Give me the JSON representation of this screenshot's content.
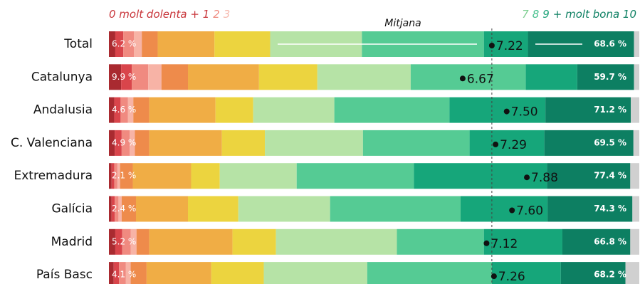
{
  "chart_data": {
    "type": "stacked_bar_horizontal",
    "header_left": [
      {
        "text": "0 molt dolenta + 1",
        "color": "#c9373c"
      },
      {
        "text": "2",
        "color": "#ef8a7f"
      },
      {
        "text": "3",
        "color": "#f6b9ae"
      }
    ],
    "header_right": [
      {
        "text": "7",
        "color": "#7fcf92"
      },
      {
        "text": "8",
        "color": "#45c08d"
      },
      {
        "text": "9",
        "color": "#1fa37a"
      },
      {
        "text": "+ molt bona 10",
        "color": "#0e8063"
      }
    ],
    "mean_title": "Mitjana",
    "categories": [
      "Total",
      "Catalunya",
      "Andalusia",
      "C. Valenciana",
      "Extremadura",
      "Galícia",
      "Madrid",
      "País Basc"
    ],
    "xlim": [
      0,
      100
    ],
    "mean_lim": [
      0,
      10
    ],
    "series": [
      {
        "color": "#a92a30",
        "values": [
          1.2,
          2.3,
          1.0,
          1.1,
          0.5,
          0.5,
          1.2,
          0.9
        ]
      },
      {
        "color": "#d9454b",
        "values": [
          1.5,
          2.0,
          1.2,
          1.3,
          0.5,
          0.6,
          1.3,
          1.0
        ]
      },
      {
        "color": "#f08a80",
        "values": [
          2.0,
          3.1,
          1.4,
          1.5,
          0.6,
          0.7,
          1.6,
          1.3
        ]
      },
      {
        "color": "#f7b3a6",
        "values": [
          1.5,
          2.5,
          1.0,
          1.0,
          0.5,
          0.6,
          1.1,
          0.9
        ]
      },
      {
        "color": "#ee8b4b",
        "values": [
          3.0,
          5.0,
          3.0,
          2.7,
          2.4,
          2.7,
          2.4,
          3.0
        ]
      },
      {
        "color": "#f0ad45",
        "values": [
          10.7,
          13.4,
          12.5,
          13.7,
          11.0,
          9.8,
          15.7,
          12.2
        ]
      },
      {
        "color": "#ecd43f",
        "values": [
          10.5,
          11.0,
          7.1,
          8.1,
          5.4,
          9.5,
          8.2,
          9.9
        ]
      },
      {
        "color": "#b6e3a6",
        "values": [
          17.3,
          17.6,
          15.3,
          18.5,
          14.5,
          17.3,
          22.8,
          19.5
        ]
      },
      {
        "color": "#55cb94",
        "values": [
          23.0,
          21.7,
          21.7,
          20.1,
          22.1,
          24.6,
          16.4,
          23.5
        ]
      },
      {
        "color": "#16a67a",
        "values": [
          8.3,
          9.7,
          18.1,
          14.1,
          25.1,
          16.4,
          14.8,
          13.0
        ]
      },
      {
        "color": "#0d7f62",
        "values": [
          20.0,
          10.7,
          16.1,
          16.8,
          15.7,
          16.0,
          12.8,
          12.2
        ]
      },
      {
        "color": "#d0d0d0",
        "values": [
          1.0,
          1.0,
          1.6,
          1.1,
          1.7,
          1.3,
          1.7,
          2.6
        ]
      }
    ],
    "low": {
      "values": [
        6.2,
        9.9,
        4.6,
        4.9,
        2.1,
        2.4,
        5.2,
        4.1
      ],
      "value_labels": [
        "6.2 %",
        "9.9 %",
        "4.6 %",
        "4.9 %",
        "2.1 %",
        "2.4 %",
        "5.2 %",
        "4.1 %"
      ]
    },
    "high": {
      "values": [
        68.6,
        59.7,
        71.2,
        69.5,
        77.4,
        74.3,
        66.8,
        68.2
      ],
      "value_labels": [
        "68.6 %",
        "59.7 %",
        "71.2 %",
        "69.5 %",
        "77.4 %",
        "74.3 %",
        "66.8 %",
        "68.2 %"
      ]
    },
    "mean": {
      "values": [
        7.22,
        6.67,
        7.5,
        7.29,
        7.88,
        7.6,
        7.12,
        7.26
      ],
      "value_labels": [
        "7.22",
        "6.67",
        "7.50",
        "7.29",
        "7.88",
        "7.60",
        "7.12",
        "7.26"
      ]
    }
  }
}
